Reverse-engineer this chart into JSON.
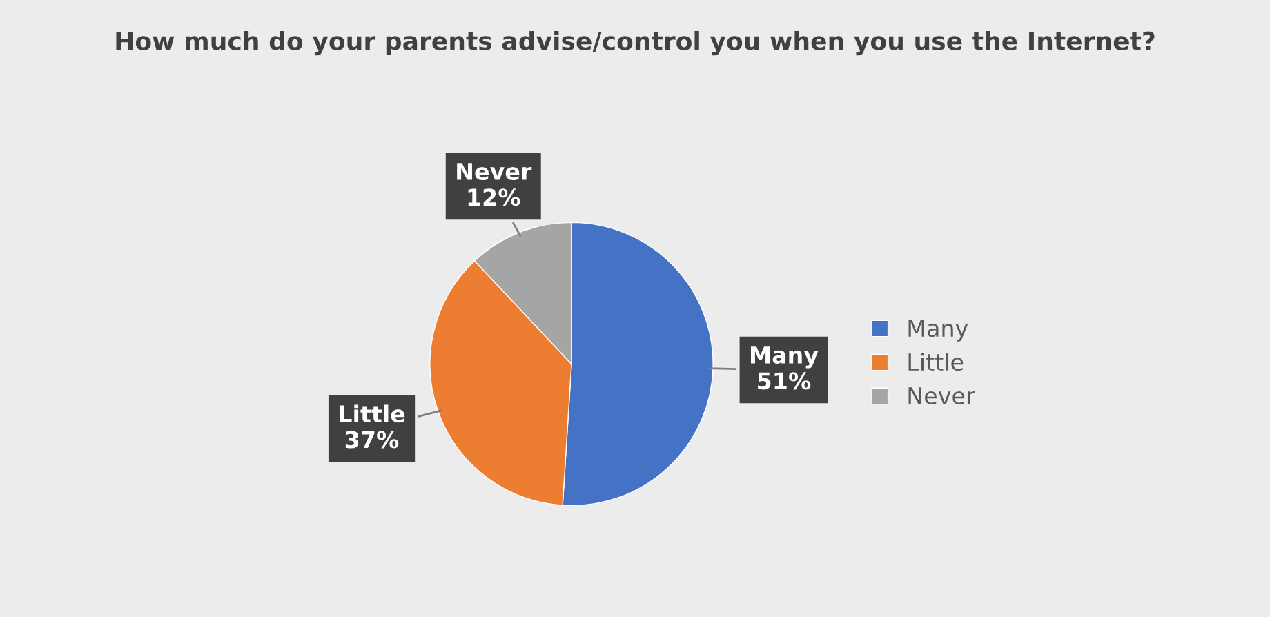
{
  "chart_data": {
    "type": "pie",
    "title": "How much do your parents advise/control you when you use the Internet?",
    "categories": [
      "Many",
      "Little",
      "Never"
    ],
    "values": [
      51,
      37,
      12
    ],
    "colors": [
      "#4472c4",
      "#ed7d31",
      "#a5a5a5"
    ],
    "value_labels": [
      "51%",
      "37%",
      "12%"
    ],
    "legend": "right"
  }
}
